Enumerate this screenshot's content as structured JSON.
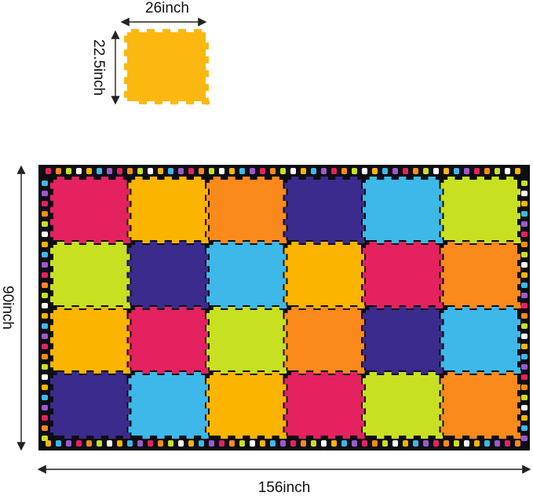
{
  "dimensions": {
    "tile_width": "26inch",
    "tile_height": "22.5inch",
    "rug_height": "90inch",
    "rug_width": "156inch"
  }
}
